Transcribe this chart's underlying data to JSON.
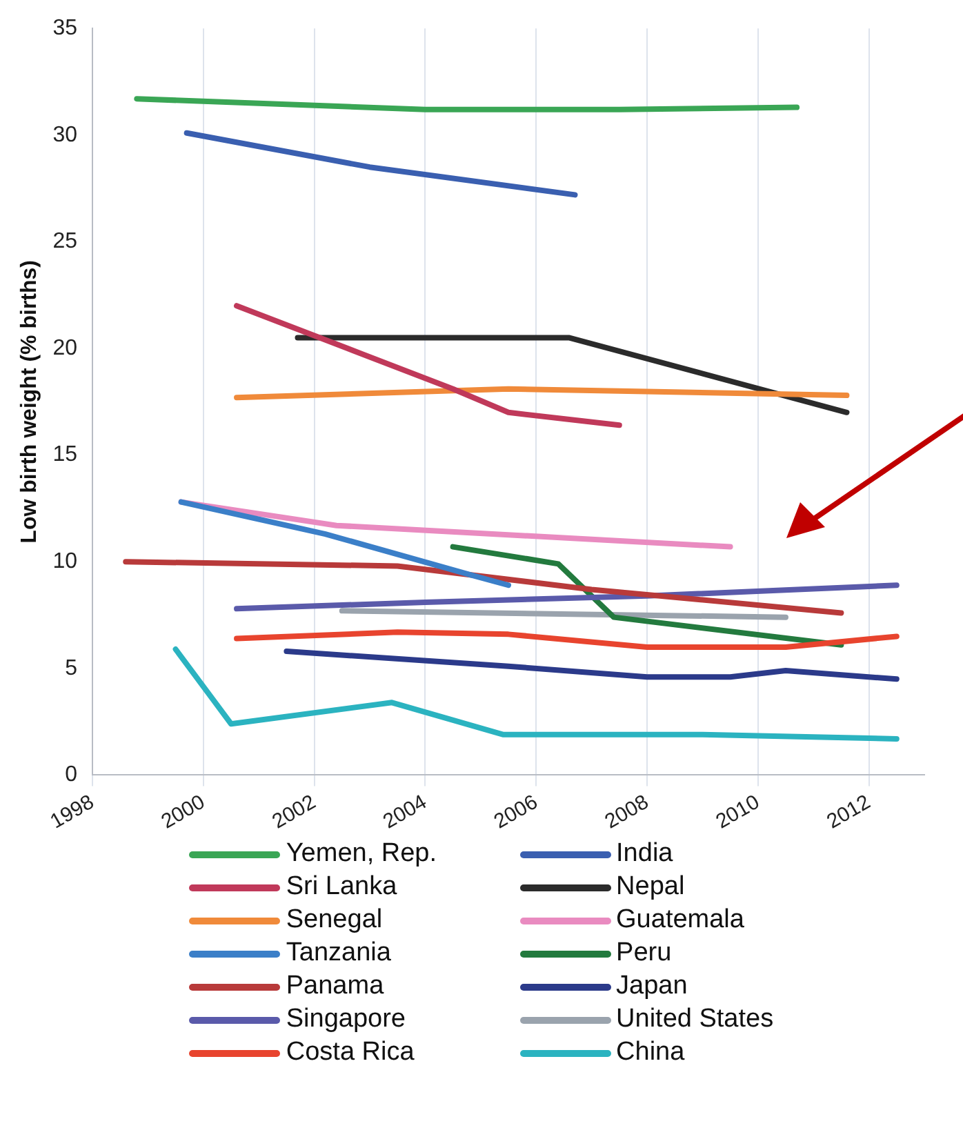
{
  "chart_data": {
    "type": "line",
    "ylabel": "Low birth weight (% births)",
    "xlim": [
      1998,
      2013
    ],
    "xticks": [
      1998,
      2000,
      2002,
      2004,
      2006,
      2008,
      2010,
      2012
    ],
    "ylim": [
      0,
      35
    ],
    "yticks": [
      0,
      5,
      10,
      15,
      20,
      25,
      30,
      35
    ],
    "grid": "x",
    "legend": "bottom",
    "marker": "none",
    "line_style": "solid",
    "series": [
      {
        "name": "Yemen, Rep.",
        "color": "#3aa655",
        "x": [
          1998.8,
          2004,
          2007.5,
          2010.7
        ],
        "values": [
          31.7,
          31.2,
          31.2,
          31.3
        ]
      },
      {
        "name": "Sri Lanka",
        "color": "#c0395a",
        "x": [
          2000.6,
          2004.5,
          2005.5,
          2007.5
        ],
        "values": [
          22.0,
          18.1,
          17.0,
          16.4
        ]
      },
      {
        "name": "Senegal",
        "color": "#f08a3a",
        "x": [
          2000.6,
          2005.5,
          2011.6
        ],
        "values": [
          17.7,
          18.1,
          17.8
        ]
      },
      {
        "name": "Tanzania",
        "color": "#3b7fc8",
        "x": [
          1999.6,
          2002.2,
          2004.8,
          2005.5
        ],
        "values": [
          12.8,
          11.3,
          9.4,
          8.9
        ]
      },
      {
        "name": "Panama",
        "color": "#b83a3a",
        "x": [
          1998.6,
          2003.5,
          2007,
          2011.5
        ],
        "values": [
          10.0,
          9.8,
          8.7,
          7.6
        ]
      },
      {
        "name": "Singapore",
        "color": "#5a5aaa",
        "x": [
          2000.6,
          2004,
          2008,
          2012.5
        ],
        "values": [
          7.8,
          8.1,
          8.4,
          8.9
        ]
      },
      {
        "name": "Costa Rica",
        "color": "#e8442e",
        "x": [
          2000.6,
          2003.5,
          2005.5,
          2008,
          2010.5,
          2012.5
        ],
        "values": [
          6.4,
          6.7,
          6.6,
          6.0,
          6.0,
          6.5
        ]
      },
      {
        "name": "India",
        "color": "#3a5fb0",
        "x": [
          1999.7,
          2003,
          2006.7
        ],
        "values": [
          30.1,
          28.5,
          27.2
        ]
      },
      {
        "name": "Nepal",
        "color": "#2b2b2b",
        "x": [
          2001.7,
          2006.6,
          2011.6
        ],
        "values": [
          20.5,
          20.5,
          17.0
        ]
      },
      {
        "name": "Guatemala",
        "color": "#e98bc0",
        "x": [
          1999.6,
          2002.4,
          2009.5
        ],
        "values": [
          12.8,
          11.7,
          10.7
        ]
      },
      {
        "name": "Peru",
        "color": "#237a3e",
        "x": [
          2004.5,
          2006.4,
          2007.4,
          2011.5
        ],
        "values": [
          10.7,
          9.9,
          7.4,
          6.1
        ]
      },
      {
        "name": "Japan",
        "color": "#2b3a8a",
        "x": [
          2001.5,
          2005.5,
          2008,
          2009.5,
          2010.5,
          2012.5
        ],
        "values": [
          5.8,
          5.1,
          4.6,
          4.6,
          4.9,
          4.5
        ]
      },
      {
        "name": "United States",
        "color": "#9aa3ad",
        "x": [
          2002.5,
          2010.5
        ],
        "values": [
          7.7,
          7.4
        ]
      },
      {
        "name": "China",
        "color": "#2bb3c0",
        "x": [
          1999.5,
          2000.5,
          2003.4,
          2005.4,
          2009,
          2012.5
        ],
        "values": [
          5.9,
          2.4,
          3.4,
          1.9,
          1.9,
          1.7
        ]
      }
    ]
  }
}
